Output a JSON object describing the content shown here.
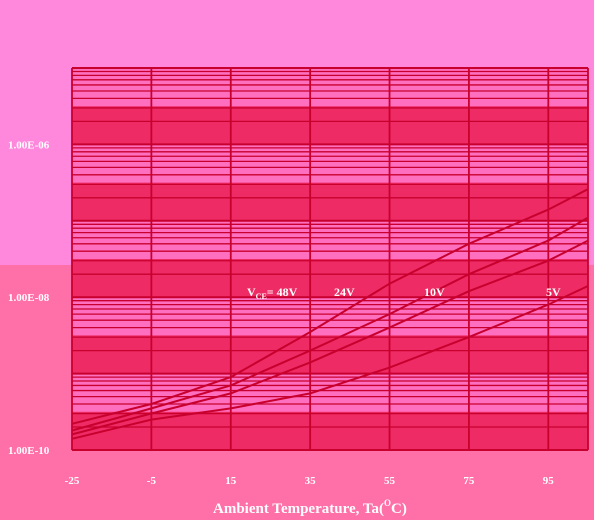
{
  "colors": {
    "page_top": "#ff88dd",
    "page_bottom": "#ff6fa8",
    "band_dark": "#ee2b65",
    "band_light": "#ff6fc0",
    "line": "#c8002e",
    "text": "#ffffff"
  },
  "chart_data": {
    "type": "line",
    "xlabel_main": "Ambient Temperature, Ta(",
    "xlabel_sup": "O",
    "xlabel_end": "C)",
    "x_ticks": [
      "-25",
      "-5",
      "15",
      "35",
      "55",
      "75",
      "95"
    ],
    "y_ticks": [
      "1.00E-06",
      "1.00E-08",
      "1.00E-10"
    ],
    "xlim": [
      -25,
      105
    ],
    "ylim_log10": [
      -10,
      -5
    ],
    "y_scale": "log",
    "grid": true,
    "series_labels": {
      "v48_prefix": "V",
      "v48_sub": "CE",
      "v48_value": "= 48V",
      "v24": "24V",
      "v10": "10V",
      "v5": "5V"
    },
    "series": [
      {
        "name": "V_CE = 48V",
        "x": [
          -25,
          -5,
          15,
          35,
          55,
          75,
          95,
          105
        ],
        "y": [
          2.2e-10,
          4e-10,
          9e-10,
          3.5e-09,
          1.5e-08,
          5e-08,
          1.4e-07,
          2.6e-07
        ]
      },
      {
        "name": "24V",
        "x": [
          -25,
          -5,
          15,
          35,
          55,
          75,
          95,
          105
        ],
        "y": [
          1.8e-10,
          3.5e-10,
          7e-10,
          2e-09,
          6e-09,
          2e-08,
          5.5e-08,
          1.1e-07
        ]
      },
      {
        "name": "10V",
        "x": [
          -25,
          -5,
          15,
          35,
          55,
          75,
          95,
          105
        ],
        "y": [
          1.6e-10,
          3e-10,
          5.5e-10,
          1.4e-09,
          4e-09,
          1.2e-08,
          3e-08,
          5.5e-08
        ]
      },
      {
        "name": "5V",
        "x": [
          -25,
          -5,
          15,
          35,
          55,
          75,
          95,
          105
        ],
        "y": [
          1.4e-10,
          2.5e-10,
          3.5e-10,
          5.5e-10,
          1.2e-09,
          3e-09,
          8e-09,
          1.4e-08
        ]
      }
    ]
  }
}
